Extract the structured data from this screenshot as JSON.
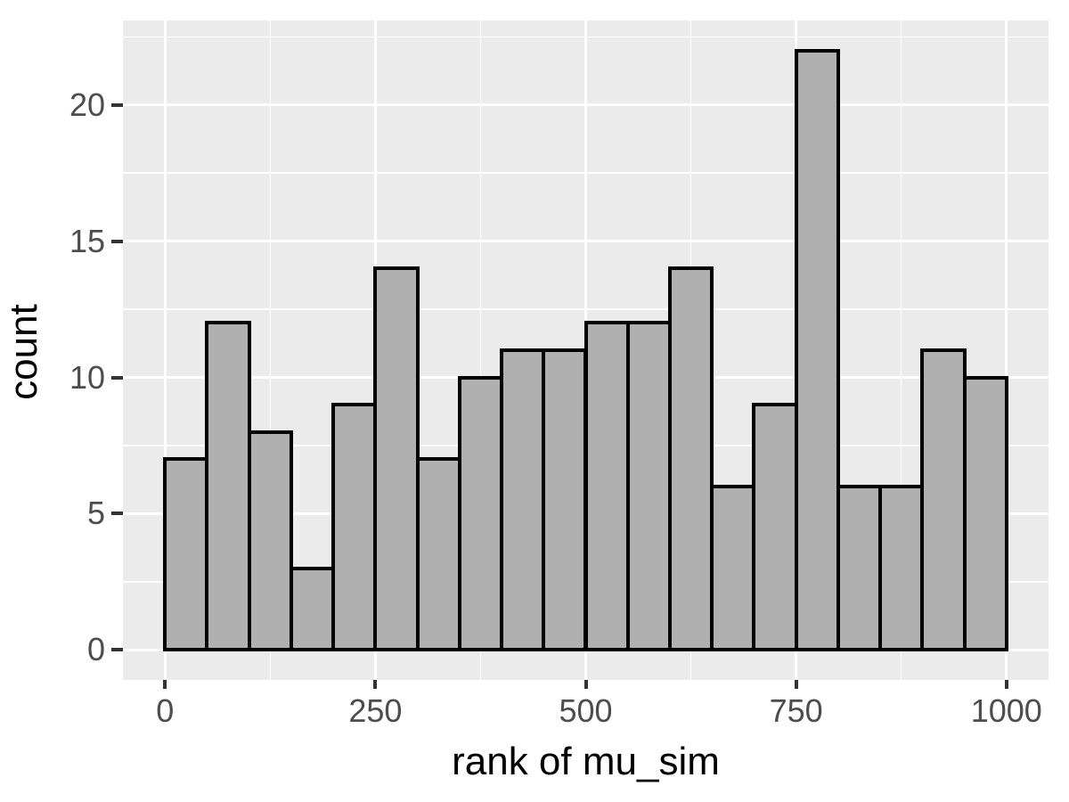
{
  "chart_data": {
    "type": "bar",
    "subtype": "histogram",
    "title": "",
    "xlabel": "rank of mu_sim",
    "ylabel": "count",
    "bin_start": 0,
    "bin_width": 50,
    "categories": [
      "0-50",
      "50-100",
      "100-150",
      "150-200",
      "200-250",
      "250-300",
      "300-350",
      "350-400",
      "400-450",
      "450-500",
      "500-550",
      "550-600",
      "600-650",
      "650-700",
      "700-750",
      "750-800",
      "800-850",
      "850-900",
      "900-950",
      "950-1000"
    ],
    "values": [
      7,
      12,
      8,
      3,
      9,
      14,
      7,
      10,
      11,
      11,
      12,
      12,
      14,
      6,
      9,
      22,
      6,
      6,
      11,
      10
    ],
    "x_ticks": [
      0,
      250,
      500,
      750,
      1000
    ],
    "x_tick_labels": [
      "0",
      "250",
      "500",
      "750",
      "1000"
    ],
    "y_ticks": [
      0,
      5,
      10,
      15,
      20
    ],
    "y_tick_labels": [
      "0",
      "5",
      "10",
      "15",
      "20"
    ],
    "x_minor_gridlines": [
      125,
      375,
      625,
      875
    ],
    "y_minor_gridlines": [
      2.5,
      7.5,
      12.5,
      17.5,
      22.5
    ],
    "xlim": [
      -50,
      1050
    ],
    "ylim": [
      -1.1,
      23.1
    ],
    "grid": "on",
    "legend": "none",
    "colors": {
      "panel_background": "#EBEBEB",
      "gridline": "#FFFFFF",
      "bar_fill": "#B0B0B0",
      "bar_stroke": "#000000",
      "tick_mark": "#333333",
      "tick_label": "#4D4D4D",
      "axis_title": "#000000"
    }
  }
}
